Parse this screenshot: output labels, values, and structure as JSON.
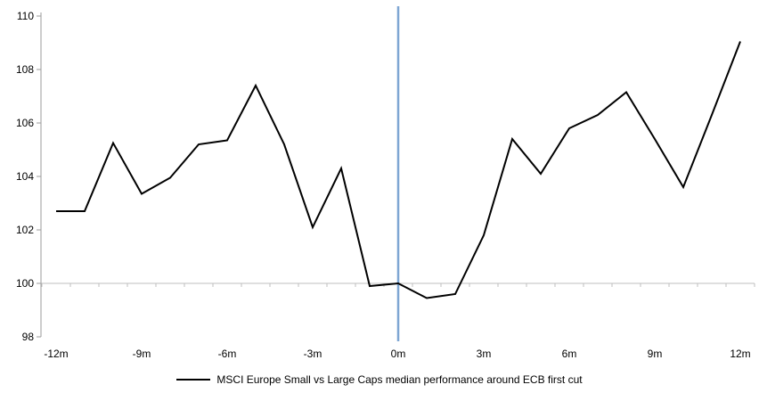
{
  "chart_data": {
    "type": "line",
    "title": "",
    "xlabel": "",
    "ylabel": "",
    "x_unit": "months relative to ECB first cut",
    "x": [
      -12,
      -11,
      -10,
      -9,
      -8,
      -7,
      -6,
      -5,
      -4,
      -3,
      -2,
      -1,
      0,
      1,
      2,
      3,
      4,
      5,
      6,
      7,
      8,
      9,
      10,
      11,
      12
    ],
    "series": [
      {
        "name": "MSCI Europe Small vs Large Caps median performance around ECB first cut",
        "values": [
          102.7,
          102.7,
          105.25,
          103.35,
          103.95,
          105.2,
          105.35,
          107.4,
          105.2,
          102.1,
          104.3,
          99.9,
          100.0,
          99.45,
          99.6,
          101.8,
          105.4,
          104.1,
          105.8,
          106.3,
          107.15,
          105.4,
          103.6,
          106.3,
          109.05
        ]
      }
    ],
    "x_tick_months": [
      -12,
      -9,
      -6,
      -3,
      0,
      3,
      6,
      9,
      12
    ],
    "x_tick_labels": [
      "-12m",
      "-9m",
      "-6m",
      "-3m",
      "0m",
      "3m",
      "6m",
      "9m",
      "12m"
    ],
    "y_ticks": [
      98,
      100,
      102,
      104,
      106,
      108,
      110
    ],
    "ylim": [
      98,
      110
    ],
    "baseline_value": 100,
    "event_line": {
      "month": 0,
      "label": "ECB first cut"
    },
    "legend_position": "bottom-center",
    "grid": "baseline-only",
    "colors": {
      "series": "#000000",
      "event_line": "#7EA6D3",
      "axis": "#9B9B9B",
      "baseline": "#BFBFBF",
      "text": "#000000",
      "background": "#FFFFFF"
    }
  },
  "legend": {
    "label": "MSCI Europe Small vs Large Caps median performance around ECB first cut"
  }
}
